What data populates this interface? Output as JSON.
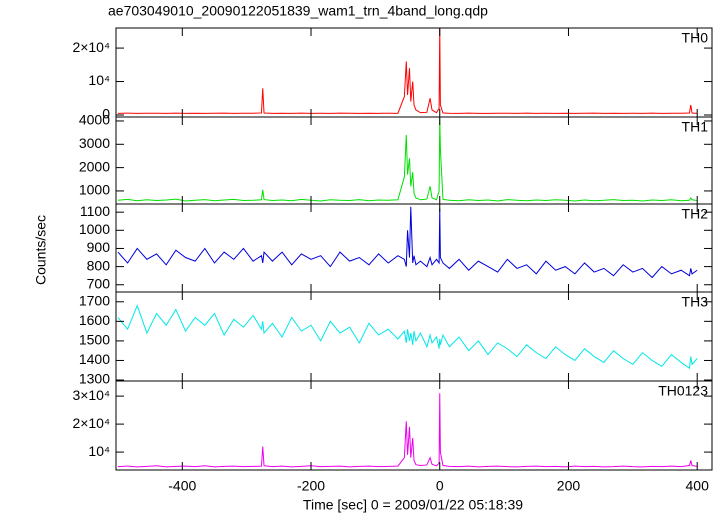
{
  "title": "ae703049010_20090122051839_wam1_trn_4band_long.qdp",
  "xlabel": "Time [sec] 0 = 2009/01/22 05:18:39",
  "ylabel": "Counts/sec",
  "chart_data": [
    {
      "type": "line",
      "name": "TH0",
      "color": "#ff0000",
      "xlim": [
        -503,
        423
      ],
      "ylim": [
        -600,
        26000
      ],
      "yticks": [
        0,
        {
          "value": 10000,
          "label": "10⁴"
        },
        {
          "value": 20000,
          "label": "2×10⁴"
        }
      ],
      "x": [
        -500,
        -485,
        -470,
        -455,
        -440,
        -425,
        -410,
        -395,
        -380,
        -365,
        -350,
        -335,
        -320,
        -305,
        -290,
        -277,
        -275,
        -273,
        -260,
        -245,
        -230,
        -215,
        -200,
        -185,
        -170,
        -155,
        -140,
        -125,
        -110,
        -95,
        -80,
        -65,
        -55,
        -52,
        -50,
        -47,
        -45,
        -42,
        -40,
        -37,
        -30,
        -20,
        -15,
        -12,
        -5,
        -1,
        0,
        1,
        5,
        15,
        30,
        45,
        60,
        75,
        90,
        105,
        120,
        135,
        150,
        165,
        180,
        195,
        210,
        225,
        240,
        255,
        270,
        285,
        300,
        315,
        330,
        345,
        360,
        375,
        388,
        390,
        392,
        400
      ],
      "values": [
        500,
        560,
        470,
        540,
        510,
        480,
        550,
        490,
        530,
        470,
        520,
        560,
        480,
        510,
        540,
        600,
        8000,
        600,
        490,
        530,
        470,
        550,
        500,
        520,
        480,
        560,
        510,
        470,
        540,
        500,
        530,
        490,
        5500,
        16000,
        6000,
        14000,
        4000,
        10000,
        3000,
        1500,
        700,
        800,
        5000,
        1500,
        700,
        2000,
        26000,
        3000,
        600,
        520,
        480,
        550,
        500,
        470,
        530,
        510,
        490,
        560,
        480,
        520,
        500,
        540,
        470,
        510,
        550,
        490,
        530,
        480,
        520,
        500,
        560,
        470,
        510,
        540,
        600,
        3000,
        600,
        500
      ]
    },
    {
      "type": "line",
      "name": "TH1",
      "color": "#00e000",
      "xlim": [
        -503,
        423
      ],
      "ylim": [
        440,
        4170
      ],
      "yticks": [
        1000,
        2000,
        3000,
        4000
      ],
      "x": [
        -500,
        -485,
        -470,
        -455,
        -440,
        -425,
        -410,
        -395,
        -380,
        -365,
        -350,
        -335,
        -320,
        -305,
        -290,
        -277,
        -275,
        -273,
        -260,
        -245,
        -230,
        -215,
        -200,
        -185,
        -170,
        -155,
        -140,
        -125,
        -110,
        -95,
        -80,
        -65,
        -55,
        -52,
        -50,
        -47,
        -45,
        -42,
        -40,
        -37,
        -30,
        -20,
        -15,
        -12,
        -5,
        -1,
        0,
        1,
        5,
        15,
        30,
        45,
        60,
        75,
        90,
        105,
        120,
        135,
        150,
        165,
        180,
        195,
        210,
        225,
        240,
        255,
        270,
        285,
        300,
        315,
        330,
        345,
        360,
        375,
        388,
        390,
        392,
        400
      ],
      "values": [
        600,
        640,
        580,
        620,
        590,
        610,
        650,
        570,
        600,
        630,
        580,
        610,
        640,
        590,
        600,
        620,
        1050,
        630,
        590,
        610,
        580,
        640,
        600,
        570,
        620,
        600,
        590,
        630,
        580,
        610,
        600,
        620,
        1600,
        3400,
        1700,
        2400,
        1200,
        1800,
        900,
        700,
        620,
        650,
        1200,
        700,
        620,
        1000,
        4100,
        2800,
        640,
        600,
        580,
        620,
        590,
        610,
        570,
        630,
        600,
        580,
        610,
        590,
        620,
        600,
        570,
        610,
        580,
        600,
        630,
        590,
        600,
        570,
        610,
        590,
        620,
        580,
        600,
        700,
        620,
        590
      ]
    },
    {
      "type": "line",
      "name": "TH2",
      "color": "#0000dd",
      "xlim": [
        -503,
        423
      ],
      "ylim": [
        660,
        1145
      ],
      "yticks": [
        700,
        800,
        900,
        1000,
        1100
      ],
      "x": [
        -500,
        -485,
        -470,
        -455,
        -440,
        -425,
        -410,
        -395,
        -380,
        -365,
        -350,
        -335,
        -320,
        -305,
        -290,
        -277,
        -275,
        -273,
        -260,
        -245,
        -230,
        -215,
        -200,
        -185,
        -170,
        -155,
        -140,
        -125,
        -110,
        -95,
        -80,
        -65,
        -55,
        -52,
        -50,
        -47,
        -45,
        -42,
        -40,
        -37,
        -30,
        -20,
        -15,
        -12,
        -5,
        -1,
        0,
        1,
        5,
        15,
        30,
        45,
        60,
        75,
        90,
        105,
        120,
        135,
        150,
        165,
        180,
        195,
        210,
        225,
        240,
        255,
        270,
        285,
        300,
        315,
        330,
        345,
        360,
        375,
        388,
        390,
        392,
        400
      ],
      "values": [
        880,
        820,
        900,
        840,
        870,
        810,
        890,
        850,
        830,
        900,
        820,
        880,
        840,
        900,
        830,
        860,
        820,
        880,
        830,
        880,
        810,
        870,
        840,
        860,
        800,
        880,
        830,
        850,
        810,
        870,
        820,
        860,
        840,
        800,
        1000,
        850,
        1130,
        820,
        860,
        810,
        830,
        800,
        850,
        810,
        840,
        820,
        1120,
        850,
        820,
        790,
        840,
        780,
        830,
        800,
        770,
        840,
        790,
        810,
        760,
        830,
        780,
        800,
        760,
        820,
        770,
        790,
        750,
        810,
        770,
        790,
        740,
        800,
        760,
        780,
        750,
        790,
        760,
        780
      ]
    },
    {
      "type": "line",
      "name": "TH3",
      "color": "#00e8e8",
      "xlim": [
        -503,
        423
      ],
      "ylim": [
        1295,
        1750
      ],
      "yticks": [
        1300,
        1400,
        1500,
        1600,
        1700
      ],
      "x": [
        -500,
        -485,
        -470,
        -455,
        -440,
        -425,
        -410,
        -395,
        -380,
        -365,
        -350,
        -335,
        -320,
        -305,
        -290,
        -277,
        -275,
        -273,
        -260,
        -245,
        -230,
        -215,
        -200,
        -185,
        -170,
        -155,
        -140,
        -125,
        -110,
        -95,
        -80,
        -65,
        -55,
        -52,
        -50,
        -47,
        -45,
        -42,
        -40,
        -37,
        -30,
        -20,
        -15,
        -12,
        -5,
        -1,
        0,
        1,
        5,
        15,
        30,
        45,
        60,
        75,
        90,
        105,
        120,
        135,
        150,
        165,
        180,
        195,
        210,
        225,
        240,
        255,
        270,
        285,
        300,
        315,
        330,
        345,
        360,
        375,
        388,
        390,
        392,
        400
      ],
      "values": [
        1620,
        1560,
        1680,
        1540,
        1640,
        1580,
        1660,
        1550,
        1620,
        1580,
        1640,
        1530,
        1610,
        1570,
        1630,
        1560,
        1600,
        1540,
        1590,
        1520,
        1620,
        1550,
        1580,
        1500,
        1600,
        1540,
        1570,
        1490,
        1590,
        1530,
        1560,
        1510,
        1550,
        1490,
        1560,
        1500,
        1540,
        1480,
        1550,
        1500,
        1540,
        1470,
        1530,
        1490,
        1520,
        1460,
        1510,
        1480,
        1530,
        1470,
        1520,
        1450,
        1500,
        1430,
        1490,
        1460,
        1420,
        1480,
        1440,
        1410,
        1470,
        1430,
        1400,
        1460,
        1420,
        1390,
        1450,
        1410,
        1380,
        1440,
        1400,
        1370,
        1430,
        1390,
        1360,
        1420,
        1380,
        1410
      ]
    },
    {
      "type": "line",
      "name": "TH0123",
      "color": "#ee00ee",
      "xlim": [
        -503,
        423
      ],
      "ylim": [
        3600,
        35400
      ],
      "yticks": [
        {
          "value": 10000,
          "label": "10⁴"
        },
        {
          "value": 20000,
          "label": "2×10⁴"
        },
        {
          "value": 30000,
          "label": "3×10⁴"
        }
      ],
      "xticks": [
        -400,
        -200,
        0,
        200,
        400
      ],
      "x": [
        -500,
        -485,
        -470,
        -455,
        -440,
        -425,
        -410,
        -395,
        -380,
        -365,
        -350,
        -335,
        -320,
        -305,
        -290,
        -277,
        -275,
        -273,
        -260,
        -245,
        -230,
        -215,
        -200,
        -185,
        -170,
        -155,
        -140,
        -125,
        -110,
        -95,
        -80,
        -65,
        -55,
        -52,
        -50,
        -47,
        -45,
        -42,
        -40,
        -37,
        -30,
        -20,
        -15,
        -12,
        -5,
        -1,
        0,
        1,
        5,
        15,
        30,
        45,
        60,
        75,
        90,
        105,
        120,
        135,
        150,
        165,
        180,
        195,
        210,
        225,
        240,
        255,
        270,
        285,
        300,
        315,
        330,
        345,
        360,
        375,
        388,
        390,
        392,
        400
      ],
      "values": [
        4800,
        5000,
        4700,
        4900,
        5100,
        4700,
        4900,
        5000,
        4800,
        5100,
        4700,
        4900,
        5000,
        4800,
        4900,
        5000,
        12000,
        5100,
        4800,
        5000,
        4700,
        4900,
        5100,
        4800,
        4900,
        5000,
        4700,
        4900,
        5000,
        4800,
        4900,
        5000,
        8000,
        21000,
        9000,
        19000,
        8000,
        15000,
        7000,
        5500,
        5200,
        5400,
        8000,
        5600,
        5100,
        6000,
        31000,
        10000,
        5200,
        4900,
        4800,
        5000,
        4700,
        4900,
        5000,
        4800,
        4700,
        4900,
        5000,
        4800,
        4900,
        4700,
        5000,
        4800,
        4900,
        4700,
        4800,
        5000,
        4800,
        4700,
        4900,
        4800,
        5000,
        4800,
        5200,
        7000,
        5200,
        4900
      ]
    }
  ]
}
